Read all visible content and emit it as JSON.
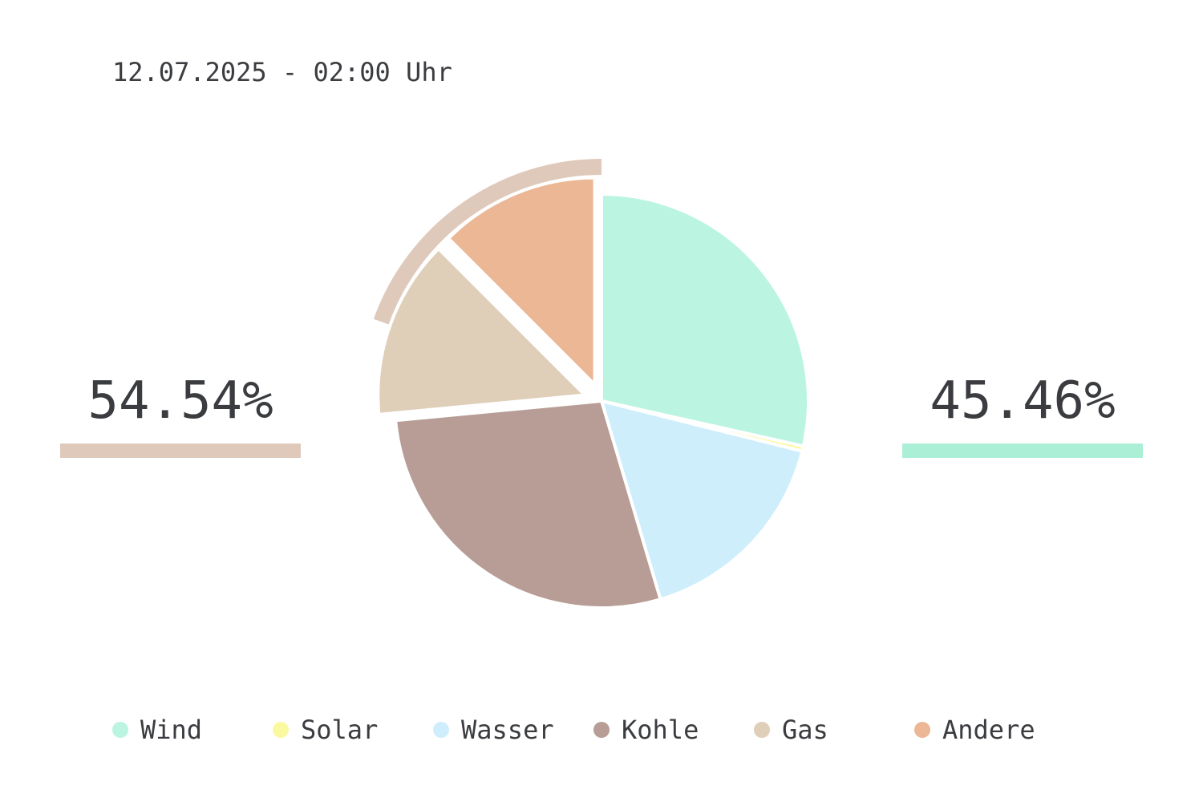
{
  "header": {
    "timestamp": "12.07.2025 - 02:00 Uhr"
  },
  "stats": {
    "left": {
      "value": "54.54%",
      "color": "#dfc9bb"
    },
    "right": {
      "value": "45.46%",
      "color": "#abf0d6"
    }
  },
  "chart_data": {
    "type": "pie",
    "title": "",
    "unit": "%",
    "legend_position": "bottom",
    "start_angle": "12 o'clock, clockwise",
    "slices": [
      {
        "label": "Wind",
        "value": 28.5,
        "color": "#bbf5e1",
        "exploded": false
      },
      {
        "label": "Solar",
        "value": 0.4,
        "color": "#faf9a0",
        "exploded": false
      },
      {
        "label": "Wasser",
        "value": 16.5,
        "color": "#cfeefc",
        "exploded": false
      },
      {
        "label": "Kohle",
        "value": 28.1,
        "color": "#b79d95",
        "exploded": false
      },
      {
        "label": "Gas",
        "value": 14.0,
        "color": "#dfceb8",
        "exploded": true
      },
      {
        "label": "Andere",
        "value": 12.5,
        "color": "#ebb794",
        "exploded": true
      }
    ],
    "highlight_arc": {
      "color": "#dfc9bb",
      "from_slice": "Gas",
      "to_slice": "Andere",
      "portion": 0.5
    }
  },
  "legend": {
    "items": [
      {
        "label": "Wind",
        "color": "#bbf5e1"
      },
      {
        "label": "Solar",
        "color": "#faf9a0"
      },
      {
        "label": "Wasser",
        "color": "#cfeefc"
      },
      {
        "label": "Kohle",
        "color": "#b79d95"
      },
      {
        "label": "Gas",
        "color": "#dfceb8"
      },
      {
        "label": "Andere",
        "color": "#ebb794"
      }
    ]
  }
}
